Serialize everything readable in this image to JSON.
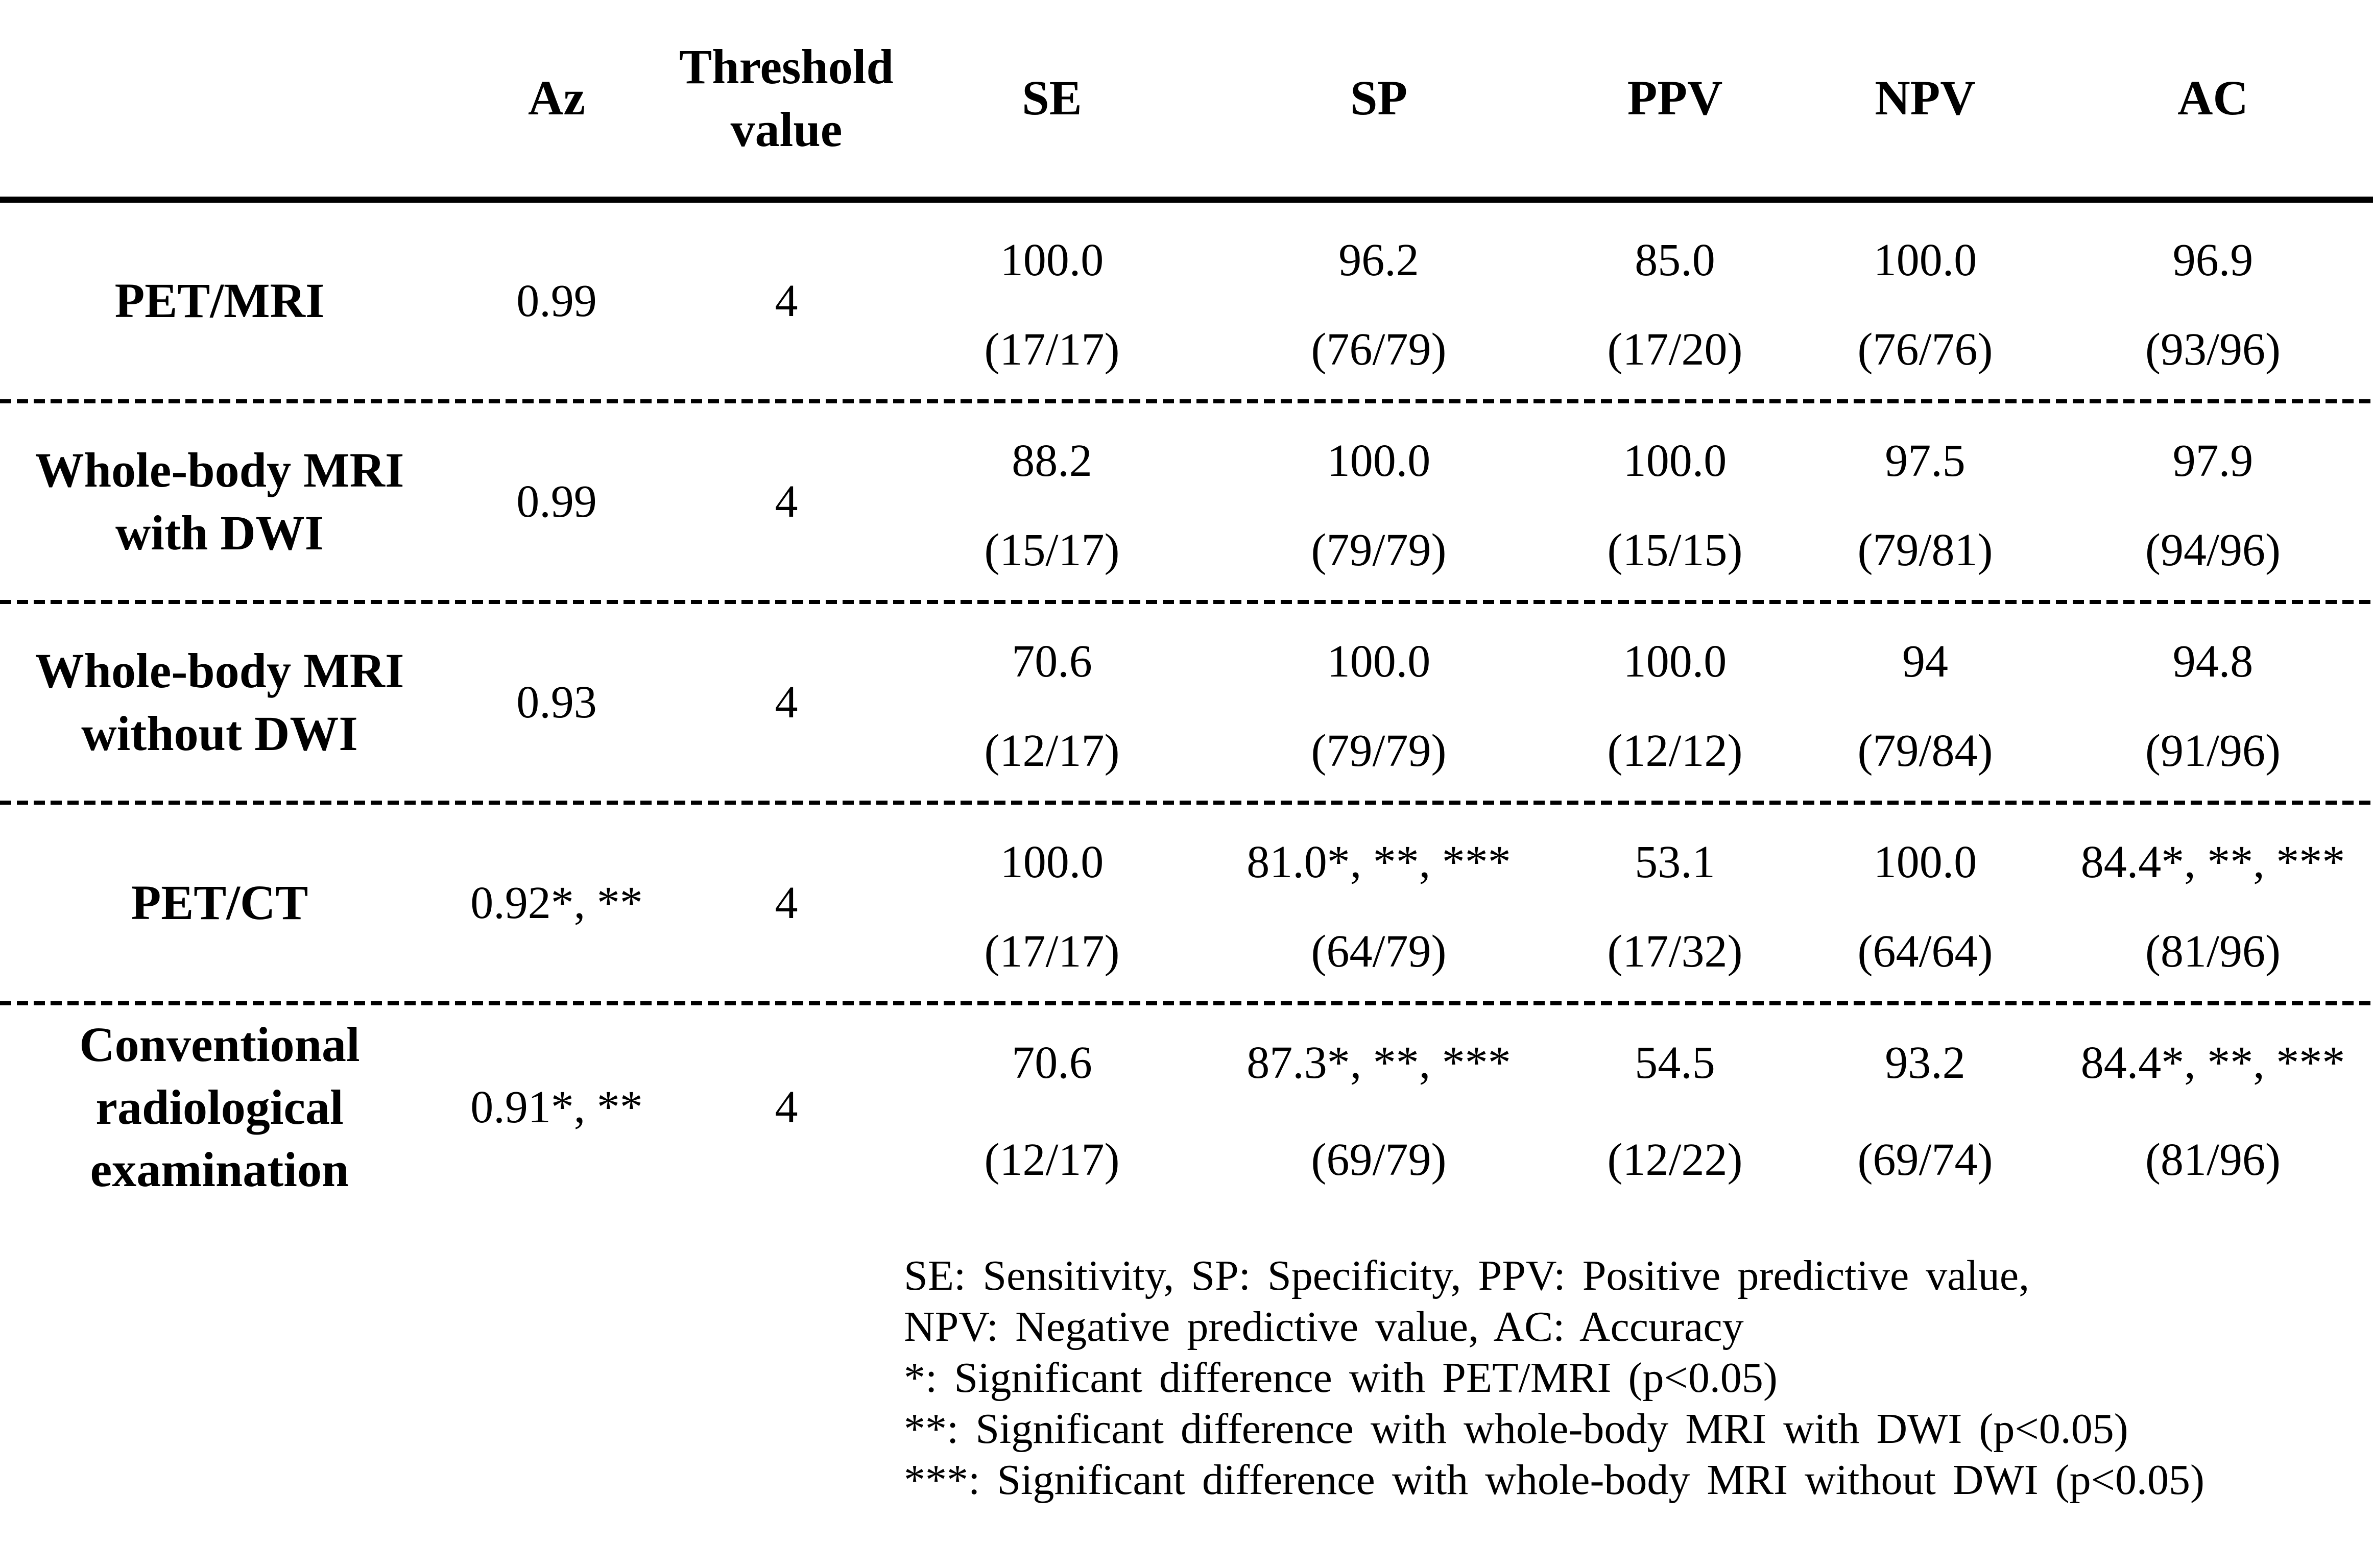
{
  "table": {
    "headers": {
      "az": "Az",
      "threshold": "Threshold\nvalue",
      "se": "SE",
      "sp": "SP",
      "ppv": "PPV",
      "npv": "NPV",
      "ac": "AC"
    },
    "rows": [
      {
        "label": "PET/MRI",
        "az": "0.99",
        "threshold": "4",
        "se": {
          "value": "100.0",
          "fraction": "(17/17)"
        },
        "sp": {
          "value": "96.2",
          "fraction": "(76/79)"
        },
        "ppv": {
          "value": "85.0",
          "fraction": "(17/20)"
        },
        "npv": {
          "value": "100.0",
          "fraction": "(76/76)"
        },
        "ac": {
          "value": "96.9",
          "fraction": "(93/96)"
        }
      },
      {
        "label": "Whole-body MRI\nwith DWI",
        "az": "0.99",
        "threshold": "4",
        "se": {
          "value": "88.2",
          "fraction": "(15/17)"
        },
        "sp": {
          "value": "100.0",
          "fraction": "(79/79)"
        },
        "ppv": {
          "value": "100.0",
          "fraction": "(15/15)"
        },
        "npv": {
          "value": "97.5",
          "fraction": "(79/81)"
        },
        "ac": {
          "value": "97.9",
          "fraction": "(94/96)"
        }
      },
      {
        "label": "Whole-body MRI\nwithout DWI",
        "az": "0.93",
        "threshold": "4",
        "se": {
          "value": "70.6",
          "fraction": "(12/17)"
        },
        "sp": {
          "value": "100.0",
          "fraction": "(79/79)"
        },
        "ppv": {
          "value": "100.0",
          "fraction": "(12/12)"
        },
        "npv": {
          "value": "94",
          "fraction": "(79/84)"
        },
        "ac": {
          "value": "94.8",
          "fraction": "(91/96)"
        }
      },
      {
        "label": "PET/CT",
        "az": "0.92*, **",
        "threshold": "4",
        "se": {
          "value": "100.0",
          "fraction": "(17/17)"
        },
        "sp": {
          "value": "81.0*, **, ***",
          "fraction": "(64/79)"
        },
        "ppv": {
          "value": "53.1",
          "fraction": "(17/32)"
        },
        "npv": {
          "value": "100.0",
          "fraction": "(64/64)"
        },
        "ac": {
          "value": "84.4*, **, ***",
          "fraction": "(81/96)"
        }
      },
      {
        "label": "Conventional\nradiological\nexamination",
        "az": "0.91*, **",
        "threshold": "4",
        "se": {
          "value": "70.6",
          "fraction": "(12/17)"
        },
        "sp": {
          "value": "87.3*, **, ***",
          "fraction": "(69/79)"
        },
        "ppv": {
          "value": "54.5",
          "fraction": "(12/22)"
        },
        "npv": {
          "value": "93.2",
          "fraction": "(69/74)"
        },
        "ac": {
          "value": "84.4*, **, ***",
          "fraction": "(81/96)"
        }
      }
    ]
  },
  "footnotes": {
    "lines": [
      "SE: Sensitivity, SP: Specificity, PPV: Positive predictive value,",
      "NPV: Negative predictive value, AC: Accuracy",
      "*: Significant difference with PET/MRI (p<0.05)",
      "**: Significant difference with whole-body MRI with DWI (p<0.05)",
      "***: Significant difference with whole-body MRI without DWI (p<0.05)"
    ]
  },
  "colors": {
    "text": "#000000",
    "background": "#ffffff"
  }
}
